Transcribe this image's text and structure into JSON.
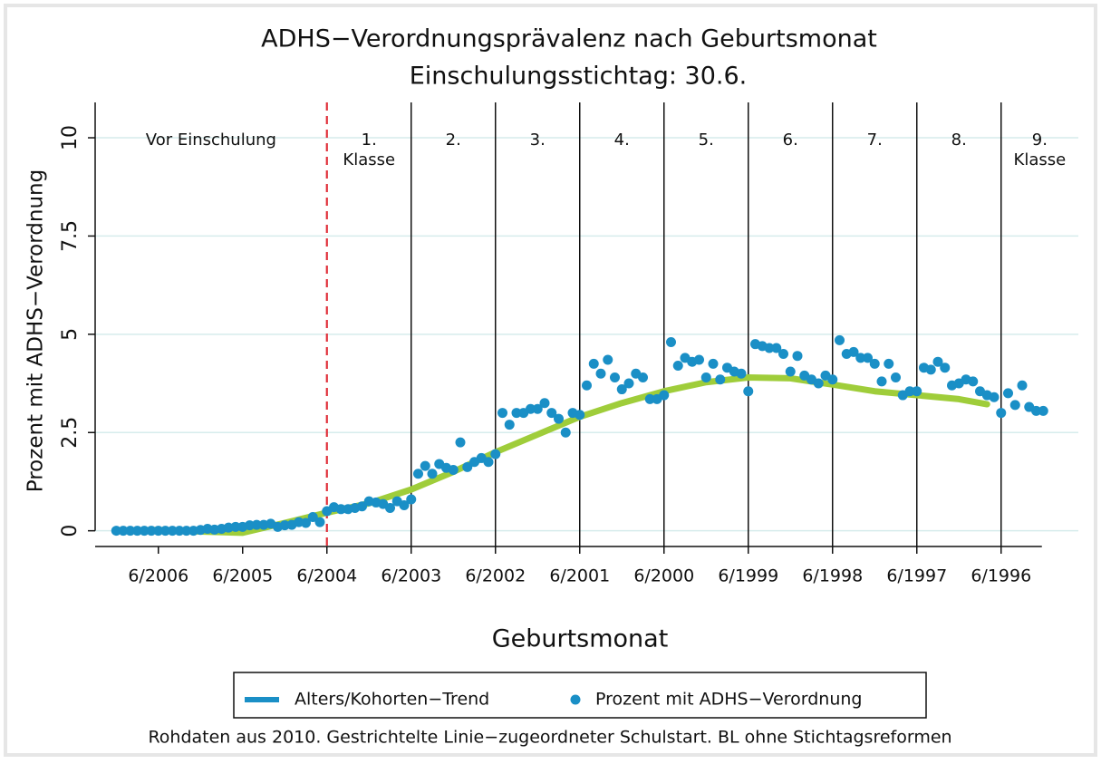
{
  "chart_data": {
    "type": "scatter",
    "title": "ADHS−Verordnungsprävalenz nach Geburtsmonat",
    "subtitle": "Einschulungsstichtag: 30.6.",
    "xlabel": "Geburtsmonat",
    "ylabel": "Prozent mit ADHS−Verordnung",
    "note": "Rohdaten aus 2010. Gestrichtelte Linie−zugeordneter Schulstart. BL ohne Stichtagsreformen",
    "xlim": [
      "3/2007",
      "7/1995"
    ],
    "xticks": [
      "6/2006",
      "6/2005",
      "6/2004",
      "6/2003",
      "6/2002",
      "6/2001",
      "6/2000",
      "6/1999",
      "6/1998",
      "6/1997",
      "6/1996"
    ],
    "ylim": [
      -0.4,
      10.9
    ],
    "yticks": [
      0,
      2.5,
      5,
      7.5,
      10
    ],
    "grid": true,
    "school_start": "6/2004",
    "class_lines": [
      "6/2003",
      "6/2002",
      "6/2001",
      "6/2000",
      "6/1999",
      "6/1998",
      "6/1997",
      "6/1996"
    ],
    "regions": [
      [
        "Vor Einschulung"
      ],
      [
        "1.",
        "Klasse"
      ],
      [
        "2."
      ],
      [
        "3."
      ],
      [
        "4."
      ],
      [
        "5."
      ],
      [
        "6."
      ],
      [
        "7."
      ],
      [
        "8."
      ],
      [
        "9.",
        "Klasse"
      ]
    ],
    "legend": "bottom",
    "series": [
      {
        "name": "Alters/Kohorten−Trend",
        "kind": "line",
        "color": "#9fcd3a",
        "legend_color": "#1a8fc6",
        "x": [
          "12/2006",
          "6/2006",
          "12/2005",
          "6/2005",
          "12/2004",
          "6/2004",
          "12/2003",
          "6/2003",
          "12/2002",
          "6/2002",
          "12/2001",
          "6/2001",
          "12/2000",
          "6/2000",
          "12/1999",
          "6/1999",
          "12/1998",
          "6/1998",
          "12/1997",
          "6/1997",
          "12/1996",
          "8/1996"
        ],
        "values": [
          0,
          0.02,
          -0.02,
          -0.05,
          0.2,
          0.46,
          0.7,
          1.05,
          1.5,
          2.0,
          2.45,
          2.9,
          3.25,
          3.55,
          3.78,
          3.9,
          3.88,
          3.72,
          3.55,
          3.45,
          3.35,
          3.22
        ]
      },
      {
        "name": "Prozent mit ADHS−Verordnung",
        "kind": "points",
        "color": "#1a8fc6",
        "x": [
          "12/2006",
          "11/2006",
          "10/2006",
          "9/2006",
          "8/2006",
          "7/2006",
          "6/2006",
          "5/2006",
          "4/2006",
          "3/2006",
          "2/2006",
          "1/2006",
          "12/2005",
          "11/2005",
          "10/2005",
          "9/2005",
          "8/2005",
          "7/2005",
          "6/2005",
          "5/2005",
          "4/2005",
          "3/2005",
          "2/2005",
          "1/2005",
          "12/2004",
          "11/2004",
          "10/2004",
          "9/2004",
          "8/2004",
          "7/2004",
          "6/2004",
          "5/2004",
          "4/2004",
          "3/2004",
          "2/2004",
          "1/2004",
          "12/2003",
          "11/2003",
          "10/2003",
          "9/2003",
          "8/2003",
          "7/2003",
          "6/2003",
          "5/2003",
          "4/2003",
          "3/2003",
          "2/2003",
          "1/2003",
          "12/2002",
          "11/2002",
          "10/2002",
          "9/2002",
          "8/2002",
          "7/2002",
          "6/2002",
          "5/2002",
          "4/2002",
          "3/2002",
          "2/2002",
          "1/2002",
          "12/2001",
          "11/2001",
          "10/2001",
          "9/2001",
          "8/2001",
          "7/2001",
          "6/2001",
          "5/2001",
          "4/2001",
          "3/2001",
          "2/2001",
          "1/2001",
          "12/2000",
          "11/2000",
          "10/2000",
          "9/2000",
          "8/2000",
          "7/2000",
          "6/2000",
          "5/2000",
          "4/2000",
          "3/2000",
          "2/2000",
          "1/2000",
          "12/1999",
          "11/1999",
          "10/1999",
          "9/1999",
          "8/1999",
          "7/1999",
          "6/1999",
          "5/1999",
          "4/1999",
          "3/1999",
          "2/1999",
          "1/1999",
          "12/1998",
          "11/1998",
          "10/1998",
          "9/1998",
          "8/1998",
          "7/1998",
          "6/1998",
          "5/1998",
          "4/1998",
          "3/1998",
          "2/1998",
          "1/1998",
          "12/1997",
          "11/1997",
          "10/1997",
          "9/1997",
          "8/1997",
          "7/1997",
          "6/1997",
          "5/1997",
          "4/1997",
          "3/1997",
          "2/1997",
          "1/1997",
          "12/1996",
          "11/1996",
          "10/1996",
          "9/1996",
          "8/1996",
          "7/1996",
          "6/1996",
          "5/1996",
          "4/1996",
          "3/1996",
          "2/1996",
          "1/1996",
          "12/1995"
        ],
        "values": [
          0,
          0,
          0,
          0,
          0,
          0,
          0,
          0,
          0,
          0,
          0,
          0,
          0.02,
          0.05,
          0.03,
          0.05,
          0.08,
          0.1,
          0.1,
          0.14,
          0.15,
          0.15,
          0.18,
          0.1,
          0.14,
          0.15,
          0.22,
          0.2,
          0.35,
          0.22,
          0.5,
          0.6,
          0.55,
          0.55,
          0.58,
          0.62,
          0.75,
          0.72,
          0.68,
          0.58,
          0.75,
          0.65,
          0.8,
          1.45,
          1.65,
          1.45,
          1.7,
          1.6,
          1.55,
          2.25,
          1.62,
          1.75,
          1.85,
          1.75,
          1.95,
          3.0,
          2.7,
          3.0,
          3.0,
          3.1,
          3.1,
          3.25,
          3.0,
          2.85,
          2.5,
          3.0,
          2.95,
          3.7,
          4.25,
          4.0,
          4.35,
          3.9,
          3.6,
          3.75,
          4.0,
          3.9,
          3.35,
          3.35,
          3.45,
          4.8,
          4.2,
          4.4,
          4.3,
          4.35,
          3.9,
          4.25,
          3.85,
          4.15,
          4.05,
          4.0,
          3.55,
          4.75,
          4.7,
          4.65,
          4.65,
          4.5,
          4.05,
          4.45,
          3.95,
          3.85,
          3.75,
          3.95,
          3.85,
          4.85,
          4.5,
          4.55,
          4.4,
          4.4,
          4.25,
          3.8,
          4.25,
          3.9,
          3.45,
          3.55,
          3.55,
          4.15,
          4.1,
          4.3,
          4.15,
          3.7,
          3.75,
          3.85,
          3.8,
          3.55,
          3.45,
          3.4,
          3.0,
          3.5,
          3.2,
          3.7,
          3.15,
          3.05,
          3.05
        ]
      }
    ]
  }
}
